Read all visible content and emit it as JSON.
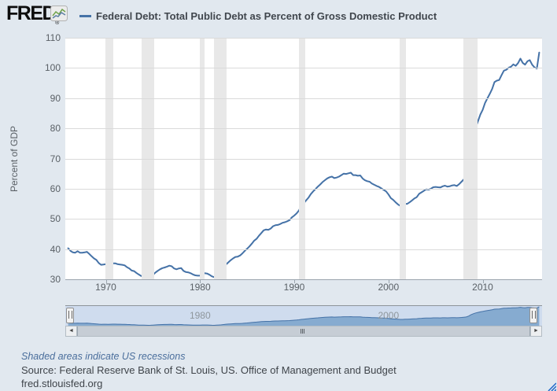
{
  "header": {
    "logo_text": "FRED",
    "registered_mark": "®",
    "series": {
      "legend_color": "#4572a7",
      "label": "Federal Debt: Total Public Debt as Percent of Gross Domestic Product"
    }
  },
  "chart_data": {
    "type": "line",
    "title": "Federal Debt: Total Public Debt as Percent of Gross Domestic Product",
    "ylabel": "Percent of GDP",
    "xlabel": "",
    "x_unit": "year (quarterly observations)",
    "x_start_year": 1966.0,
    "x_step_years": 0.25,
    "xlim": [
      1965.7,
      2016.3
    ],
    "ylim": [
      30,
      110
    ],
    "y_ticks": [
      30,
      40,
      50,
      60,
      70,
      80,
      90,
      100,
      110
    ],
    "x_ticks": [
      1970,
      1980,
      1990,
      2000,
      2010
    ],
    "grid": true,
    "legend_position": "top",
    "line_color": "#4572a7",
    "recession_color": "#e8e8e8",
    "recessions": [
      [
        1969.92,
        1970.83
      ],
      [
        1973.83,
        1975.17
      ],
      [
        1980.0,
        1980.5
      ],
      [
        1981.5,
        1982.83
      ],
      [
        1990.5,
        1991.17
      ],
      [
        2001.17,
        2001.83
      ],
      [
        2007.92,
        2009.42
      ]
    ],
    "values": [
      40.3,
      39.4,
      38.9,
      38.8,
      39.3,
      38.8,
      38.8,
      38.9,
      39.1,
      38.4,
      37.6,
      36.9,
      36.4,
      35.4,
      34.8,
      34.9,
      35.0,
      34.7,
      35.0,
      35.3,
      35.3,
      35.0,
      34.9,
      34.8,
      34.6,
      34.0,
      33.6,
      32.9,
      32.7,
      32.1,
      31.6,
      31.1,
      31.1,
      30.8,
      30.5,
      30.9,
      31.4,
      32.2,
      32.8,
      33.3,
      33.7,
      33.9,
      34.2,
      34.5,
      34.3,
      33.6,
      33.3,
      33.6,
      33.7,
      32.8,
      32.4,
      32.3,
      32.0,
      31.6,
      31.3,
      31.2,
      31.2,
      31.7,
      32.0,
      31.9,
      31.5,
      31.0,
      30.7,
      31.3,
      32.0,
      32.5,
      33.6,
      34.9,
      35.6,
      36.3,
      36.9,
      37.4,
      37.5,
      37.9,
      38.6,
      39.4,
      40.1,
      40.9,
      41.8,
      42.8,
      43.4,
      44.4,
      45.3,
      46.2,
      46.5,
      46.4,
      46.8,
      47.6,
      47.9,
      48.0,
      48.3,
      48.7,
      48.9,
      49.2,
      49.6,
      50.5,
      51.1,
      51.8,
      52.8,
      54.3,
      55.1,
      56.1,
      57.0,
      58.2,
      59.1,
      59.9,
      60.7,
      61.4,
      62.2,
      62.8,
      63.4,
      63.8,
      64.0,
      63.5,
      63.7,
      64.0,
      64.5,
      65.0,
      64.9,
      65.1,
      65.3,
      64.5,
      64.5,
      64.3,
      64.4,
      63.4,
      62.8,
      62.5,
      62.3,
      61.7,
      61.3,
      60.9,
      60.6,
      60.1,
      59.6,
      59.1,
      58.1,
      56.9,
      56.3,
      55.5,
      54.8,
      54.3,
      54.4,
      55.0,
      55.0,
      55.5,
      56.1,
      56.8,
      57.2,
      58.3,
      58.8,
      59.3,
      59.8,
      59.7,
      60.0,
      60.5,
      60.6,
      60.5,
      60.4,
      60.8,
      61.0,
      60.7,
      60.8,
      61.1,
      61.2,
      60.9,
      61.5,
      62.3,
      63.1,
      64.0,
      67.7,
      72.8,
      76.9,
      80.3,
      82.4,
      84.6,
      86.1,
      88.4,
      89.9,
      91.4,
      93.0,
      95.3,
      95.8,
      96.0,
      97.6,
      99.1,
      99.4,
      100.1,
      100.4,
      101.2,
      100.7,
      101.6,
      103.1,
      101.7,
      101.1,
      102.2,
      102.6,
      101.1,
      100.2,
      99.8,
      105.1
    ]
  },
  "navigator": {
    "labels": [
      {
        "text": "1980",
        "year": 1980
      },
      {
        "text": "2000",
        "year": 2000
      }
    ],
    "selection_color": "#cfdcee",
    "area_color": "#86abd0",
    "line_color": "#4572a7",
    "value_range": [
      29,
      108
    ]
  },
  "scrollbar": {
    "left_arrow": "◄",
    "right_arrow": "►"
  },
  "footer": {
    "note": "Shaded areas indicate US recessions",
    "source": "Source: Federal Reserve Bank of St. Louis, US. Office of Management and Budget",
    "site": "fred.stlouisfed.org"
  }
}
